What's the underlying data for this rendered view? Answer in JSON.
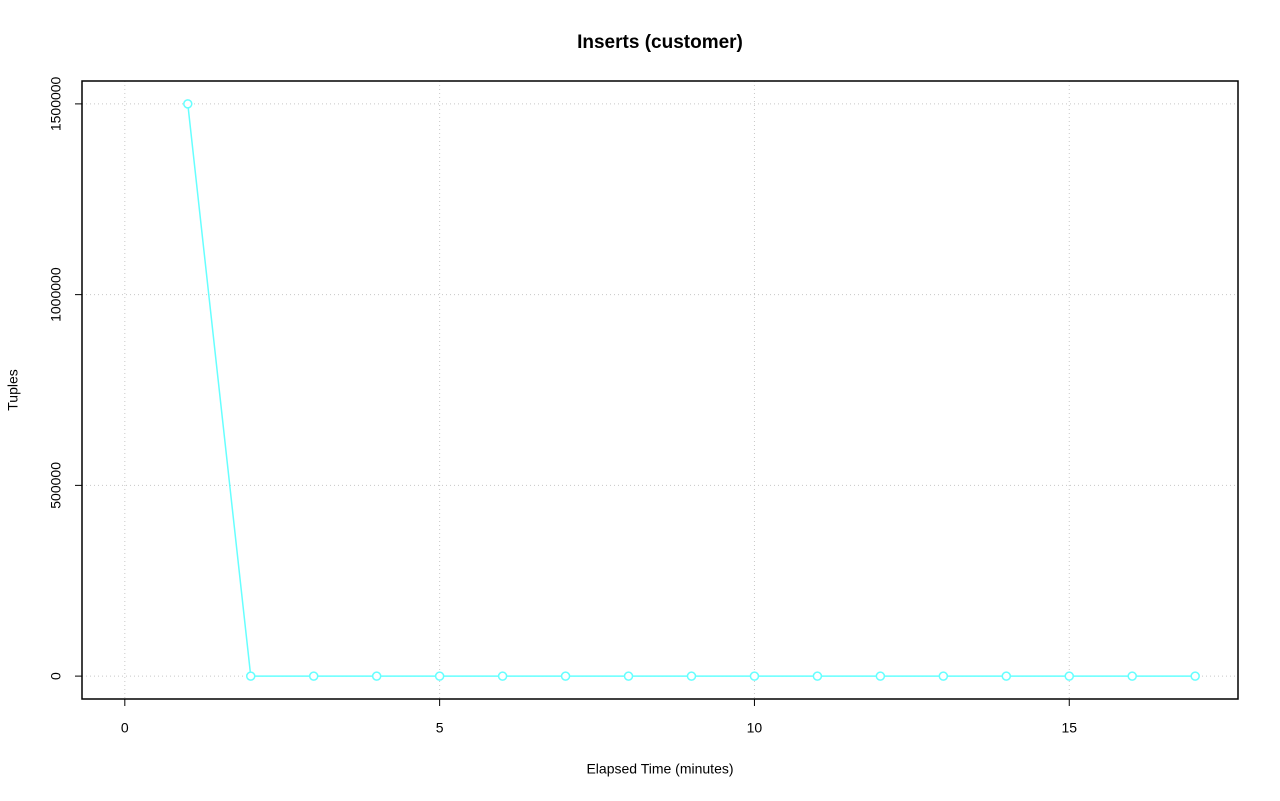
{
  "chart_data": {
    "type": "line",
    "title": "Inserts (customer)",
    "x_label": "Elapsed Time (minutes)",
    "y_label": "Tuples",
    "x": [
      1,
      2,
      3,
      4,
      5,
      6,
      7,
      8,
      9,
      10,
      11,
      12,
      13,
      14,
      15,
      16,
      17
    ],
    "series": [
      {
        "color": "#66ffff",
        "values": [
          1500000,
          0,
          0,
          0,
          0,
          0,
          0,
          0,
          0,
          0,
          0,
          0,
          0,
          0,
          0,
          0,
          0
        ]
      }
    ],
    "xlim": [
      -0.68,
      17.68
    ],
    "xticks": [
      0,
      5,
      10,
      15
    ],
    "ylim": [
      -60000,
      1560000
    ],
    "yticks": [
      0,
      500000,
      1000000,
      1500000
    ],
    "grid": true
  }
}
